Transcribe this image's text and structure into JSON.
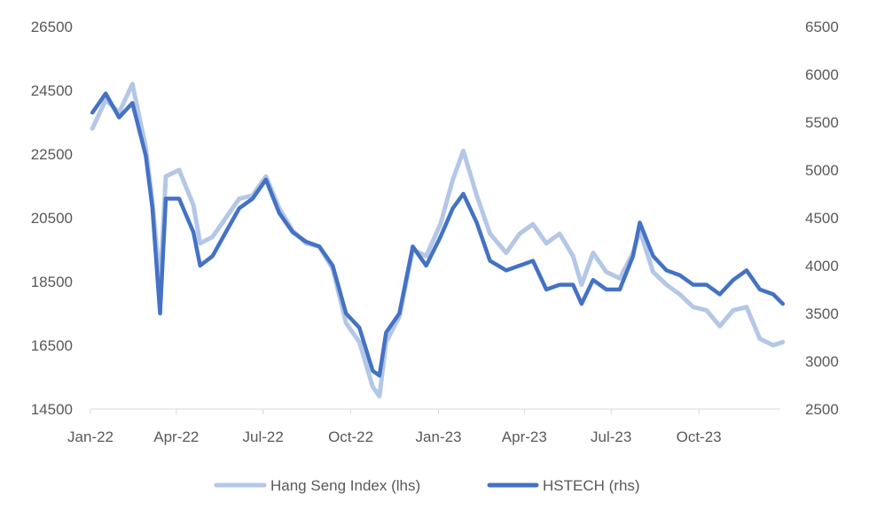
{
  "chart_data": {
    "type": "line",
    "title": "",
    "xlabel": "",
    "ylabel": "",
    "x_ticks": [
      {
        "date": "2022-01-01",
        "label": "Jan-22"
      },
      {
        "date": "2022-04-01",
        "label": "Apr-22"
      },
      {
        "date": "2022-07-01",
        "label": "Jul-22"
      },
      {
        "date": "2022-10-01",
        "label": "Oct-22"
      },
      {
        "date": "2023-01-01",
        "label": "Jan-23"
      },
      {
        "date": "2023-04-01",
        "label": "Apr-23"
      },
      {
        "date": "2023-07-01",
        "label": "Jul-23"
      },
      {
        "date": "2023-10-01",
        "label": "Oct-23"
      }
    ],
    "x_range": [
      "2022-01-01",
      "2023-12-31"
    ],
    "y_left": {
      "range": [
        14500,
        26500
      ],
      "ticks": [
        "26500",
        "24500",
        "22500",
        "20500",
        "18500",
        "16500",
        "14500"
      ]
    },
    "y_right": {
      "range": [
        2500,
        6500
      ],
      "ticks": [
        "6500",
        "6000",
        "5500",
        "5000",
        "4500",
        "4000",
        "3500",
        "3000",
        "2500"
      ]
    },
    "grid": false,
    "legend_position": "bottom",
    "series": [
      {
        "name": "Hang Seng Index (lhs)",
        "axis": "left",
        "color": "#b4c7e7"
      },
      {
        "name": "HSTECH (rhs)",
        "axis": "right",
        "color": "#4472c4"
      }
    ],
    "dates": [
      "2022-01-03",
      "2022-01-17",
      "2022-01-31",
      "2022-02-14",
      "2022-02-28",
      "2022-03-07",
      "2022-03-15",
      "2022-03-21",
      "2022-04-04",
      "2022-04-19",
      "2022-04-26",
      "2022-05-09",
      "2022-05-23",
      "2022-06-06",
      "2022-06-20",
      "2022-07-04",
      "2022-07-18",
      "2022-08-01",
      "2022-08-15",
      "2022-08-29",
      "2022-09-12",
      "2022-09-26",
      "2022-10-10",
      "2022-10-24",
      "2022-10-31",
      "2022-11-07",
      "2022-11-21",
      "2022-12-05",
      "2022-12-19",
      "2023-01-03",
      "2023-01-16",
      "2023-01-27",
      "2023-02-10",
      "2023-02-24",
      "2023-03-13",
      "2023-03-27",
      "2023-04-10",
      "2023-04-24",
      "2023-05-08",
      "2023-05-22",
      "2023-05-31",
      "2023-06-12",
      "2023-06-26",
      "2023-07-10",
      "2023-07-24",
      "2023-07-31",
      "2023-08-14",
      "2023-08-28",
      "2023-09-11",
      "2023-09-25",
      "2023-10-09",
      "2023-10-23",
      "2023-11-06",
      "2023-11-20",
      "2023-12-04",
      "2023-12-18",
      "2023-12-28"
    ],
    "values": [
      [
        23300,
        24200,
        23800,
        24700,
        22700,
        21000,
        18400,
        21800,
        22000,
        20900,
        19700,
        19900,
        20500,
        21100,
        21200,
        21800,
        20800,
        20100,
        19700,
        19600,
        18900,
        17200,
        16600,
        15200,
        14900,
        16600,
        17400,
        19500,
        19300,
        20300,
        21700,
        22600,
        21200,
        20000,
        19400,
        20000,
        20300,
        19700,
        20000,
        19300,
        18400,
        19400,
        18800,
        18600,
        19400,
        20100,
        18800,
        18400,
        18100,
        17700,
        17600,
        17100,
        17600,
        17700,
        16700,
        16500,
        16600
      ],
      [
        5600,
        5800,
        5550,
        5700,
        5150,
        4600,
        3500,
        4700,
        4700,
        4350,
        4000,
        4100,
        4350,
        4600,
        4700,
        4900,
        4550,
        4350,
        4250,
        4200,
        4000,
        3500,
        3350,
        2900,
        2850,
        3300,
        3500,
        4200,
        4000,
        4300,
        4600,
        4750,
        4450,
        4050,
        3950,
        4000,
        4050,
        3750,
        3800,
        3800,
        3600,
        3850,
        3750,
        3750,
        4100,
        4450,
        4100,
        3950,
        3900,
        3800,
        3800,
        3700,
        3850,
        3950,
        3750,
        3700,
        3600
      ]
    ]
  }
}
